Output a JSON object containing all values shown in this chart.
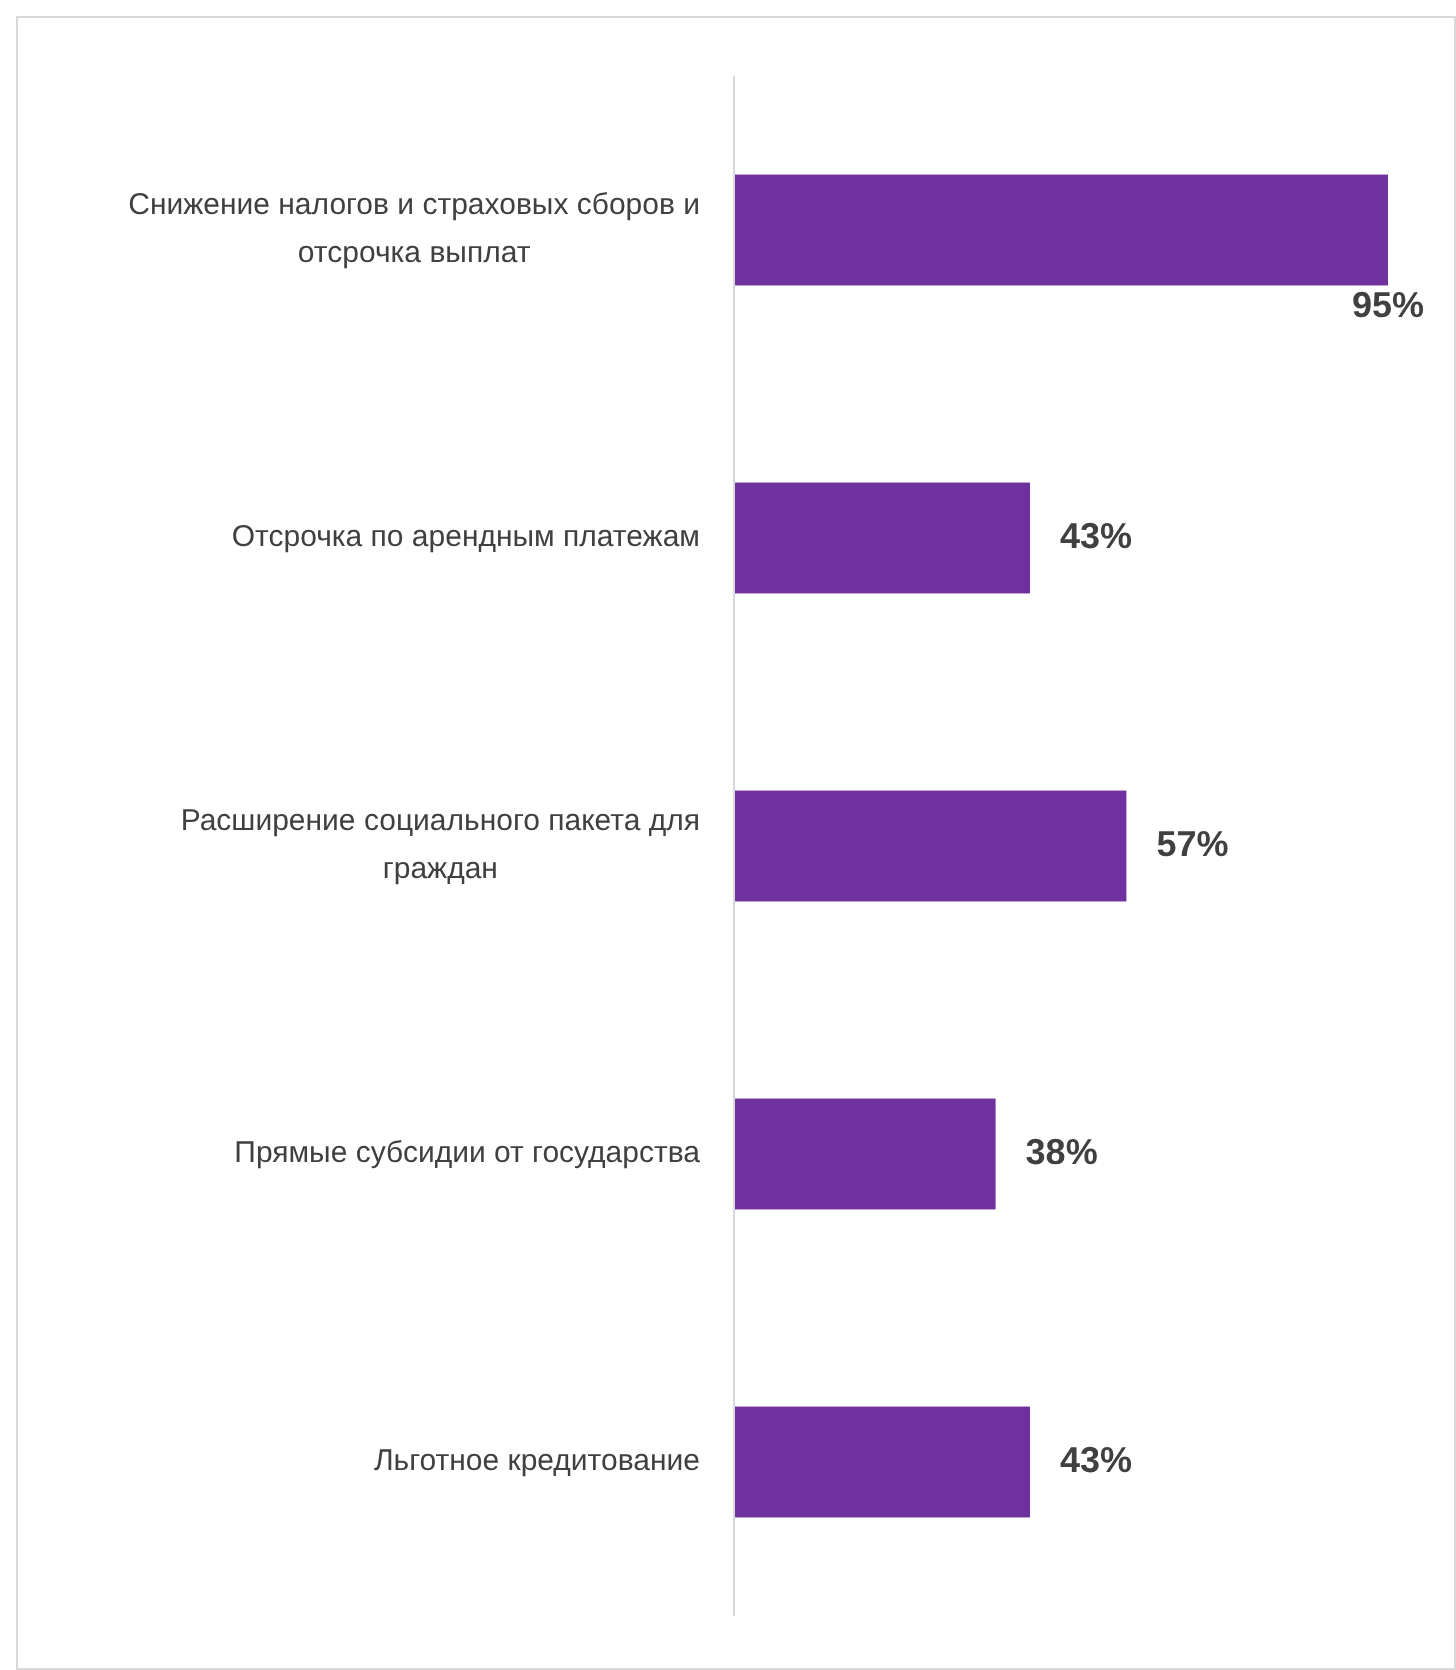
{
  "chart_data": {
    "type": "bar",
    "orientation": "horizontal",
    "categories": [
      "Снижение налогов и страховых сборов и отсрочка выплат",
      "Отсрочка по арендным платежам",
      "Расширение социального пакета для граждан",
      "Прямые субсидии от государства",
      "Льготное кредитование"
    ],
    "values": [
      95,
      43,
      57,
      38,
      43
    ],
    "value_labels": [
      "95%",
      "43%",
      "57%",
      "38%",
      "43%"
    ],
    "color": "#7030a0"
  }
}
